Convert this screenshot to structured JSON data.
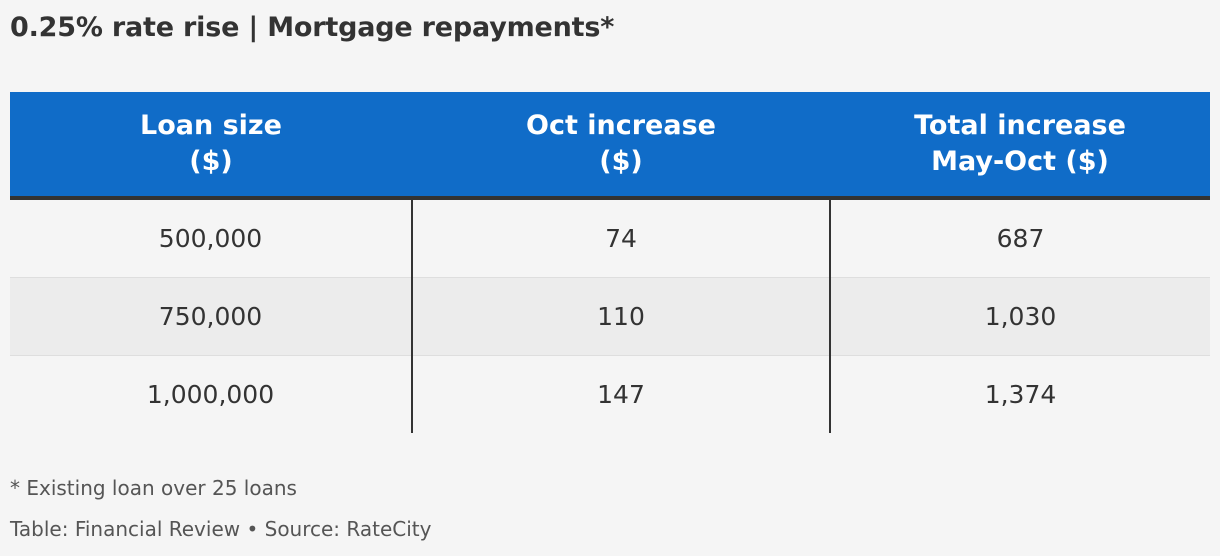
{
  "title": "0.25% rate rise | Mortgage repayments*",
  "chart_data": {
    "type": "table",
    "title": "0.25% rate rise | Mortgage repayments*",
    "columns": [
      {
        "line1": "Loan size",
        "line2": "($)"
      },
      {
        "line1": "Oct increase",
        "line2": "($)"
      },
      {
        "line1": "Total increase",
        "line2": "May-Oct ($)"
      }
    ],
    "rows": [
      [
        "500,000",
        "74",
        "687"
      ],
      [
        "750,000",
        "110",
        "1,030"
      ],
      [
        "1,000,000",
        "147",
        "1,374"
      ]
    ]
  },
  "footnote": "* Existing loan over 25 loans",
  "source": "Table: Financial Review • Source: RateCity",
  "colors": {
    "header_bg": "#106cc8",
    "header_text": "#ffffff",
    "alt_row": "#ececec",
    "background": "#f5f5f5"
  }
}
